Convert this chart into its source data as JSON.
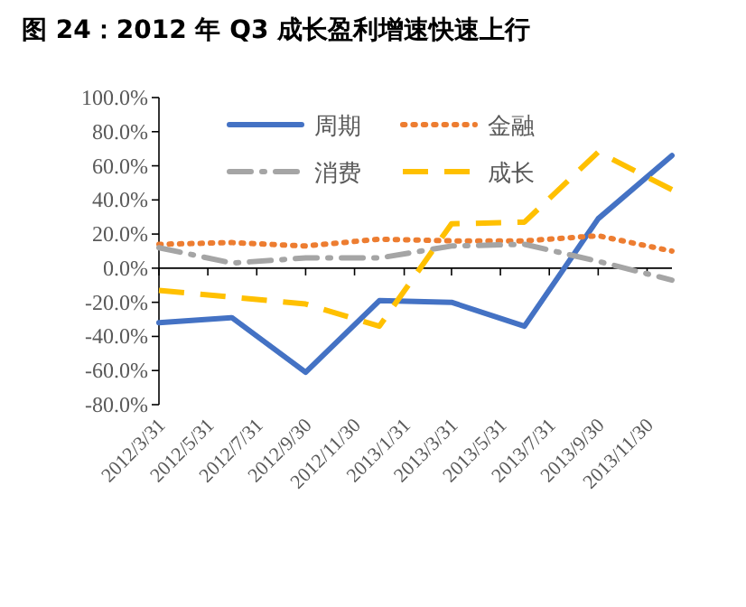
{
  "chart_data": {
    "type": "line",
    "title": "图 24：2012 年 Q3 成长盈利增速快速上行",
    "x": [
      "2012-03-31",
      "2012-06-30",
      "2012-09-30",
      "2012-12-31",
      "2013-03-31",
      "2013-06-30",
      "2013-09-30",
      "2013-12-31"
    ],
    "series": [
      {
        "name": "周期",
        "color": "#4472c4",
        "line_style": "solid",
        "values": [
          -32,
          -29,
          -61,
          -19,
          -20,
          -34,
          29,
          66
        ]
      },
      {
        "name": "金融",
        "color": "#ed7d31",
        "line_style": "dotted",
        "values": [
          14,
          15,
          13,
          17,
          16,
          16,
          19,
          10
        ]
      },
      {
        "name": "消费",
        "color": "#a5a5a5",
        "line_style": "dashdot",
        "values": [
          12,
          3,
          6,
          6,
          13,
          14,
          4,
          -7
        ]
      },
      {
        "name": "成长",
        "color": "#ffc000",
        "line_style": "dashed",
        "values": [
          -13,
          -17,
          -21,
          -34,
          26,
          27,
          68,
          46
        ]
      }
    ],
    "xlim": [
      "2012-03-31",
      "2013-12-31"
    ],
    "xticks": [
      {
        "value": "2012-03-31",
        "label": "2012/3/31"
      },
      {
        "value": "2012-05-31",
        "label": "2012/5/31"
      },
      {
        "value": "2012-07-31",
        "label": "2012/7/31"
      },
      {
        "value": "2012-09-30",
        "label": "2012/9/30"
      },
      {
        "value": "2012-11-30",
        "label": "2012/11/30"
      },
      {
        "value": "2013-01-31",
        "label": "2013/1/31"
      },
      {
        "value": "2013-03-31",
        "label": "2013/3/31"
      },
      {
        "value": "2013-05-31",
        "label": "2013/5/31"
      },
      {
        "value": "2013-07-31",
        "label": "2013/7/31"
      },
      {
        "value": "2013-09-30",
        "label": "2013/9/30"
      },
      {
        "value": "2013-11-30",
        "label": "2013/11/30"
      }
    ],
    "ylim": [
      -80,
      100
    ],
    "yticks": [
      {
        "value": -80,
        "label": "-80.0%"
      },
      {
        "value": -60,
        "label": "-60.0%"
      },
      {
        "value": -40,
        "label": "-40.0%"
      },
      {
        "value": -20,
        "label": "-20.0%"
      },
      {
        "value": 0,
        "label": "0.0%"
      },
      {
        "value": 20,
        "label": "20.0%"
      },
      {
        "value": 40,
        "label": "40.0%"
      },
      {
        "value": 60,
        "label": "60.0%"
      },
      {
        "value": 80,
        "label": "80.0%"
      },
      {
        "value": 100,
        "label": "100.0%"
      }
    ],
    "legend": "top",
    "marker": "none"
  }
}
